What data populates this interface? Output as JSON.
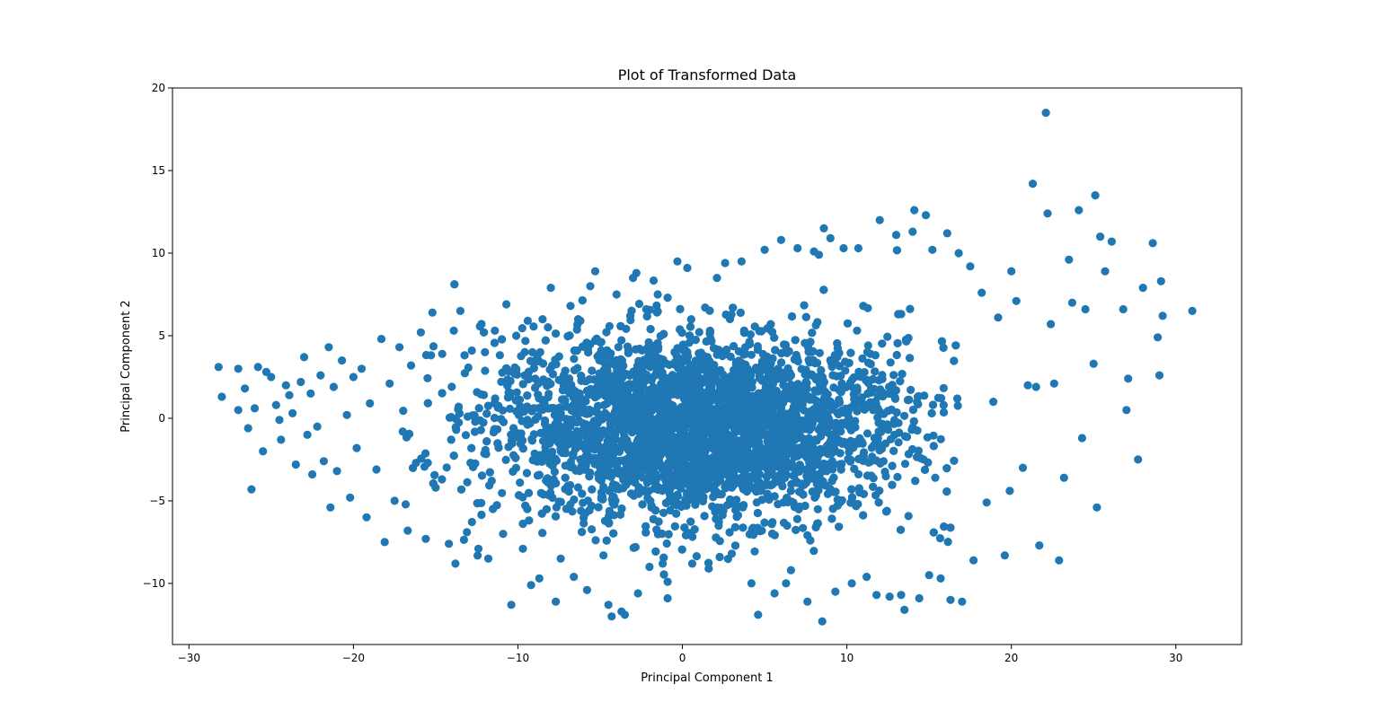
{
  "chart_data": {
    "type": "scatter",
    "title": "Plot of Transformed Data",
    "xlabel": "Principal Component 1",
    "ylabel": "Principal Component 2",
    "xlim": [
      -31,
      34
    ],
    "ylim": [
      -13.7,
      20
    ],
    "xticks": [
      -30,
      -20,
      -10,
      0,
      10,
      20,
      30
    ],
    "xtick_labels": [
      "−30",
      "−20",
      "−10",
      "0",
      "10",
      "20",
      "30"
    ],
    "yticks": [
      -10,
      -5,
      0,
      5,
      10,
      15,
      20
    ],
    "ytick_labels": [
      "−10",
      "−5",
      "0",
      "5",
      "10",
      "15",
      "20"
    ],
    "grid": false,
    "legend": "none",
    "color": "#1f77b4",
    "points": [
      [
        -28.2,
        3.1
      ],
      [
        -28.0,
        1.3
      ],
      [
        -27.0,
        3.0
      ],
      [
        -27.0,
        0.5
      ],
      [
        -26.6,
        1.8
      ],
      [
        -26.4,
        -0.6
      ],
      [
        -26.2,
        -4.3
      ],
      [
        -26.0,
        0.6
      ],
      [
        -25.8,
        3.1
      ],
      [
        -25.5,
        -2.0
      ],
      [
        -25.3,
        2.8
      ],
      [
        -25.0,
        2.5
      ],
      [
        -24.7,
        0.8
      ],
      [
        -24.5,
        -0.1
      ],
      [
        -24.4,
        -1.3
      ],
      [
        -24.1,
        2.0
      ],
      [
        -23.9,
        1.4
      ],
      [
        -23.7,
        0.3
      ],
      [
        -23.5,
        -2.8
      ],
      [
        -23.2,
        2.2
      ],
      [
        -23.0,
        3.7
      ],
      [
        -22.8,
        -1.0
      ],
      [
        -22.6,
        1.5
      ],
      [
        -22.5,
        -3.4
      ],
      [
        -22.2,
        -0.5
      ],
      [
        -22.0,
        2.6
      ],
      [
        -21.8,
        -2.6
      ],
      [
        -21.5,
        4.3
      ],
      [
        -21.4,
        -5.4
      ],
      [
        -21.2,
        1.9
      ],
      [
        -21.0,
        -3.2
      ],
      [
        -20.7,
        3.5
      ],
      [
        -20.4,
        0.2
      ],
      [
        -20.2,
        -4.8
      ],
      [
        -20.0,
        2.5
      ],
      [
        -19.8,
        -1.8
      ],
      [
        -19.5,
        3.0
      ],
      [
        -19.2,
        -6.0
      ],
      [
        -19.0,
        0.9
      ],
      [
        -18.6,
        -3.1
      ],
      [
        -18.3,
        4.8
      ],
      [
        -18.1,
        -7.5
      ],
      [
        -17.8,
        2.1
      ],
      [
        -17.5,
        -5.0
      ],
      [
        -17.2,
        4.3
      ],
      [
        -17.0,
        -0.8
      ],
      [
        -16.7,
        -6.8
      ],
      [
        -16.5,
        3.2
      ],
      [
        -16.2,
        -2.7
      ],
      [
        -15.9,
        5.2
      ],
      [
        -15.6,
        -7.3
      ],
      [
        -15.2,
        6.4
      ],
      [
        -15.0,
        -4.2
      ],
      [
        -14.6,
        3.9
      ],
      [
        -14.2,
        -7.6
      ],
      [
        -13.9,
        5.3
      ],
      [
        -13.8,
        -8.8
      ],
      [
        -13.5,
        6.5
      ],
      [
        -13.1,
        -6.9
      ],
      [
        -12.8,
        4.1
      ],
      [
        -12.4,
        -7.9
      ],
      [
        -12.0,
        4.0
      ],
      [
        -11.8,
        -8.5
      ],
      [
        -11.4,
        5.3
      ],
      [
        -10.9,
        -7.0
      ],
      [
        -10.7,
        6.9
      ],
      [
        -10.4,
        -11.3
      ],
      [
        -10.1,
        5.0
      ],
      [
        -9.7,
        -7.9
      ],
      [
        -9.4,
        5.9
      ],
      [
        -9.2,
        -10.1
      ],
      [
        -8.7,
        -9.7
      ],
      [
        -8.5,
        6.0
      ],
      [
        -8.0,
        7.9
      ],
      [
        -7.7,
        -11.1
      ],
      [
        -7.4,
        -8.5
      ],
      [
        -6.8,
        6.8
      ],
      [
        -6.6,
        -9.6
      ],
      [
        -6.2,
        5.9
      ],
      [
        -5.8,
        -10.4
      ],
      [
        -5.6,
        8.0
      ],
      [
        -5.3,
        8.9
      ],
      [
        -4.8,
        -8.3
      ],
      [
        -4.5,
        -11.3
      ],
      [
        -4.3,
        -12.0
      ],
      [
        -4.0,
        7.5
      ],
      [
        -3.7,
        -11.7
      ],
      [
        -3.5,
        -11.9
      ],
      [
        -3.0,
        8.5
      ],
      [
        -2.8,
        8.8
      ],
      [
        -2.7,
        -10.6
      ],
      [
        -2.2,
        6.6
      ],
      [
        -2.0,
        -9.0
      ],
      [
        -1.5,
        7.5
      ],
      [
        -1.2,
        -8.8
      ],
      [
        -0.9,
        7.3
      ],
      [
        -0.9,
        -10.9
      ],
      [
        -0.9,
        -9.9
      ],
      [
        -0.3,
        9.5
      ],
      [
        0.3,
        9.1
      ],
      [
        0.6,
        -8.8
      ],
      [
        1.6,
        -9.1
      ],
      [
        2.1,
        8.5
      ],
      [
        2.6,
        9.4
      ],
      [
        3.0,
        -8.2
      ],
      [
        3.6,
        9.5
      ],
      [
        4.2,
        -10.0
      ],
      [
        4.6,
        -11.9
      ],
      [
        5.0,
        10.2
      ],
      [
        5.6,
        -10.6
      ],
      [
        6.0,
        10.8
      ],
      [
        6.3,
        -10.0
      ],
      [
        6.6,
        -9.2
      ],
      [
        7.0,
        10.3
      ],
      [
        7.6,
        -11.1
      ],
      [
        8.0,
        10.1
      ],
      [
        8.3,
        9.9
      ],
      [
        8.5,
        -12.3
      ],
      [
        8.6,
        11.5
      ],
      [
        9.0,
        10.9
      ],
      [
        9.3,
        -10.5
      ],
      [
        9.8,
        10.3
      ],
      [
        10.3,
        -10.0
      ],
      [
        10.7,
        10.3
      ],
      [
        11.2,
        -9.6
      ],
      [
        11.8,
        -10.7
      ],
      [
        12.0,
        12.0
      ],
      [
        12.6,
        -10.8
      ],
      [
        13.0,
        11.1
      ],
      [
        13.3,
        -10.7
      ],
      [
        13.5,
        -11.6
      ],
      [
        14.0,
        11.3
      ],
      [
        14.1,
        12.6
      ],
      [
        14.4,
        -10.9
      ],
      [
        14.8,
        12.3
      ],
      [
        15.0,
        -9.5
      ],
      [
        15.2,
        10.2
      ],
      [
        15.7,
        -9.7
      ],
      [
        16.1,
        11.2
      ],
      [
        16.3,
        -11.0
      ],
      [
        16.8,
        10.0
      ],
      [
        17.0,
        -11.1
      ],
      [
        17.5,
        9.2
      ],
      [
        17.7,
        -8.6
      ],
      [
        18.2,
        7.6
      ],
      [
        18.5,
        -5.1
      ],
      [
        18.9,
        1.0
      ],
      [
        19.2,
        6.1
      ],
      [
        19.6,
        -8.3
      ],
      [
        19.9,
        -4.4
      ],
      [
        20.0,
        8.9
      ],
      [
        20.3,
        7.1
      ],
      [
        20.7,
        -3.0
      ],
      [
        21.0,
        2.0
      ],
      [
        21.3,
        14.2
      ],
      [
        21.5,
        1.9
      ],
      [
        21.7,
        -7.7
      ],
      [
        22.1,
        18.5
      ],
      [
        22.2,
        12.4
      ],
      [
        22.4,
        5.7
      ],
      [
        22.6,
        2.1
      ],
      [
        22.9,
        -8.6
      ],
      [
        23.2,
        -3.6
      ],
      [
        23.5,
        9.6
      ],
      [
        23.7,
        7.0
      ],
      [
        24.1,
        12.6
      ],
      [
        24.3,
        -1.2
      ],
      [
        24.5,
        6.6
      ],
      [
        25.0,
        3.3
      ],
      [
        25.1,
        13.5
      ],
      [
        25.2,
        -5.4
      ],
      [
        25.4,
        11.0
      ],
      [
        25.7,
        8.9
      ],
      [
        26.1,
        10.7
      ],
      [
        26.8,
        6.6
      ],
      [
        27.0,
        0.5
      ],
      [
        27.1,
        2.4
      ],
      [
        27.7,
        -2.5
      ],
      [
        28.0,
        7.9
      ],
      [
        28.6,
        10.6
      ],
      [
        28.9,
        4.9
      ],
      [
        29.0,
        2.6
      ],
      [
        29.1,
        8.3
      ],
      [
        29.2,
        6.2
      ],
      [
        31.0,
        6.5
      ]
    ],
    "dense_region": {
      "x_mean": 1.0,
      "x_sd": 6.3,
      "y_mean": -0.5,
      "y_sd": 2.7,
      "x_range": [
        -17,
        17
      ],
      "y_range": [
        -9.5,
        11
      ]
    }
  }
}
